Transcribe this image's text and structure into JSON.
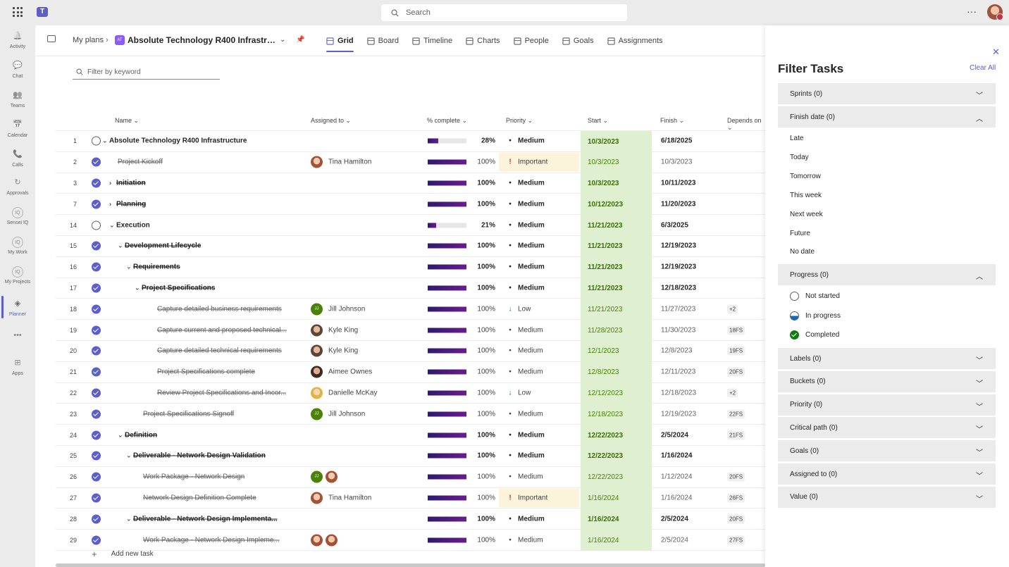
{
  "topbar": {
    "search_placeholder": "Search",
    "more": "···"
  },
  "rail": [
    {
      "label": "Activity",
      "icon": "bell-icon"
    },
    {
      "label": "Chat",
      "icon": "chat-icon"
    },
    {
      "label": "Teams",
      "icon": "teams-icon"
    },
    {
      "label": "Calendar",
      "icon": "calendar-icon"
    },
    {
      "label": "Calls",
      "icon": "phone-icon"
    },
    {
      "label": "Approvals",
      "icon": "approvals-icon"
    },
    {
      "label": "Sensei IQ",
      "icon": "iq-icon"
    },
    {
      "label": "My Work",
      "icon": "iq-icon"
    },
    {
      "label": "My Projects",
      "icon": "iq-icon"
    },
    {
      "label": "Planner",
      "icon": "planner-icon"
    },
    {
      "label": "",
      "icon": "more-icon"
    },
    {
      "label": "Apps",
      "icon": "apps-icon"
    }
  ],
  "header": {
    "breadcrumb": "My plans",
    "plan_icon_text": "AT",
    "plan_title": "Absolute Technology R400 Infrastructure",
    "tabs": [
      {
        "label": "Grid",
        "icon": "grid-icon"
      },
      {
        "label": "Board",
        "icon": "board-icon"
      },
      {
        "label": "Timeline",
        "icon": "timeline-icon"
      },
      {
        "label": "Charts",
        "icon": "chart-icon"
      },
      {
        "label": "People",
        "icon": "people-icon"
      },
      {
        "label": "Goals",
        "icon": "trophy-icon"
      },
      {
        "label": "Assignments",
        "icon": "assignments-icon"
      }
    ]
  },
  "filter": {
    "placeholder": "Filter by keyword"
  },
  "columns": {
    "name": "Name",
    "assigned": "Assigned to",
    "pct": "% complete",
    "priority": "Priority",
    "start": "Start",
    "finish": "Finish",
    "depends": "Depends on"
  },
  "rows": [
    {
      "num": "1",
      "done": false,
      "level": 0,
      "chev": "down",
      "bold": true,
      "strike": false,
      "name": "Absolute Technology R400 Infrastructure",
      "assigned": [],
      "pct": 28,
      "pct_label": "28%",
      "priority": "Medium",
      "prio_icon": "dot",
      "start": "10/3/2023",
      "finish": "6/18/2025",
      "dep": ""
    },
    {
      "num": "2",
      "done": true,
      "level": 1,
      "chev": "",
      "bold": false,
      "strike": true,
      "name": "Project Kickoff",
      "assigned": [
        {
          "type": "photo-f",
          "text": ""
        }
      ],
      "assigned_name": "Tina Hamilton",
      "pct": 100,
      "pct_label": "100%",
      "priority": "Important",
      "prio_icon": "bang",
      "start": "10/3/2023",
      "finish": "10/3/2023",
      "dep": ""
    },
    {
      "num": "3",
      "done": true,
      "level": 1,
      "chev": "right",
      "bold": true,
      "strike": true,
      "name": "Initiation",
      "assigned": [],
      "pct": 100,
      "pct_label": "100%",
      "priority": "Medium",
      "prio_icon": "dot",
      "start": "10/3/2023",
      "finish": "10/11/2023",
      "dep": ""
    },
    {
      "num": "7",
      "done": true,
      "level": 1,
      "chev": "right",
      "bold": true,
      "strike": true,
      "name": "Planning",
      "assigned": [],
      "pct": 100,
      "pct_label": "100%",
      "priority": "Medium",
      "prio_icon": "dot",
      "start": "10/12/2023",
      "finish": "11/20/2023",
      "dep": ""
    },
    {
      "num": "14",
      "done": false,
      "level": 1,
      "chev": "down",
      "bold": true,
      "strike": false,
      "name": "Execution",
      "assigned": [],
      "pct": 21,
      "pct_label": "21%",
      "priority": "Medium",
      "prio_icon": "dot",
      "start": "11/21/2023",
      "finish": "6/3/2025",
      "dep": ""
    },
    {
      "num": "15",
      "done": true,
      "level": 2,
      "chev": "down",
      "bold": true,
      "strike": true,
      "name": "Development Lifecycle",
      "assigned": [],
      "pct": 100,
      "pct_label": "100%",
      "priority": "Medium",
      "prio_icon": "dot",
      "start": "11/21/2023",
      "finish": "12/19/2023",
      "dep": ""
    },
    {
      "num": "16",
      "done": true,
      "level": 3,
      "chev": "down",
      "bold": true,
      "strike": true,
      "name": "Requirements",
      "assigned": [],
      "pct": 100,
      "pct_label": "100%",
      "priority": "Medium",
      "prio_icon": "dot",
      "start": "11/21/2023",
      "finish": "12/19/2023",
      "dep": ""
    },
    {
      "num": "17",
      "done": true,
      "level": 4,
      "chev": "down",
      "bold": true,
      "strike": true,
      "name": "Project Specifications",
      "assigned": [],
      "pct": 100,
      "pct_label": "100%",
      "priority": "Medium",
      "prio_icon": "dot",
      "start": "11/21/2023",
      "finish": "12/18/2023",
      "dep": ""
    },
    {
      "num": "18",
      "done": true,
      "level": 5,
      "chev": "",
      "bold": false,
      "strike": true,
      "name": "Capture detailed business requirements",
      "assigned": [
        {
          "type": "initials",
          "text": "JJ"
        }
      ],
      "assigned_name": "Jill Johnson",
      "pct": 100,
      "pct_label": "100%",
      "priority": "Low",
      "prio_icon": "down",
      "start": "11/21/2023",
      "finish": "11/27/2023",
      "dep": "+2"
    },
    {
      "num": "19",
      "done": true,
      "level": 5,
      "chev": "",
      "bold": false,
      "strike": true,
      "name": "Capture current and proposed technical...",
      "assigned": [
        {
          "type": "photo-m",
          "text": ""
        }
      ],
      "assigned_name": "Kyle King",
      "pct": 100,
      "pct_label": "100%",
      "priority": "Medium",
      "prio_icon": "dot",
      "start": "11/28/2023",
      "finish": "11/30/2023",
      "dep": "18FS"
    },
    {
      "num": "20",
      "done": true,
      "level": 5,
      "chev": "",
      "bold": false,
      "strike": true,
      "name": "Capture detailed technical requirements",
      "assigned": [
        {
          "type": "photo-m",
          "text": ""
        }
      ],
      "assigned_name": "Kyle King",
      "pct": 100,
      "pct_label": "100%",
      "priority": "Medium",
      "prio_icon": "dot",
      "start": "12/1/2023",
      "finish": "12/8/2023",
      "dep": "19FS"
    },
    {
      "num": "21",
      "done": true,
      "level": 5,
      "chev": "",
      "bold": false,
      "strike": true,
      "name": "Project Specifications complete",
      "assigned": [
        {
          "type": "photo-a",
          "text": ""
        }
      ],
      "assigned_name": "Aimee Ownes",
      "pct": 100,
      "pct_label": "100%",
      "priority": "Medium",
      "prio_icon": "dot",
      "start": "12/8/2023",
      "finish": "12/11/2023",
      "dep": "20FS"
    },
    {
      "num": "22",
      "done": true,
      "level": 5,
      "chev": "",
      "bold": false,
      "strike": true,
      "name": "Review Project Specifications and Incor...",
      "assigned": [
        {
          "type": "photo-d",
          "text": ""
        }
      ],
      "assigned_name": "Danielle McKay",
      "pct": 100,
      "pct_label": "100%",
      "priority": "Low",
      "prio_icon": "down",
      "start": "12/12/2023",
      "finish": "12/18/2023",
      "dep": "+2"
    },
    {
      "num": "23",
      "done": true,
      "level": 4,
      "chev": "",
      "bold": false,
      "strike": true,
      "name": "Project Specifications Signoff",
      "assigned": [
        {
          "type": "initials",
          "text": "JJ"
        }
      ],
      "assigned_name": "Jill Johnson",
      "pct": 100,
      "pct_label": "100%",
      "priority": "Medium",
      "prio_icon": "dot",
      "start": "12/18/2023",
      "finish": "12/19/2023",
      "dep": "22FS"
    },
    {
      "num": "24",
      "done": true,
      "level": 2,
      "chev": "down",
      "bold": true,
      "strike": true,
      "name": "Definition",
      "assigned": [],
      "pct": 100,
      "pct_label": "100%",
      "priority": "Medium",
      "prio_icon": "dot",
      "start": "12/22/2023",
      "finish": "2/5/2024",
      "dep": "21FS"
    },
    {
      "num": "25",
      "done": true,
      "level": 3,
      "chev": "down",
      "bold": true,
      "strike": true,
      "name": "Deliverable - Network Design Validation",
      "assigned": [],
      "pct": 100,
      "pct_label": "100%",
      "priority": "Medium",
      "prio_icon": "dot",
      "start": "12/22/2023",
      "finish": "1/16/2024",
      "dep": ""
    },
    {
      "num": "26",
      "done": true,
      "level": 4,
      "chev": "",
      "bold": false,
      "strike": true,
      "name": "Work Package - Network Design",
      "assigned": [
        {
          "type": "initials",
          "text": "JJ"
        },
        {
          "type": "photo-f",
          "text": ""
        }
      ],
      "assigned_name": "",
      "pct": 100,
      "pct_label": "100%",
      "priority": "Medium",
      "prio_icon": "dot",
      "start": "12/22/2023",
      "finish": "1/12/2024",
      "dep": "20FS"
    },
    {
      "num": "27",
      "done": true,
      "level": 4,
      "chev": "",
      "bold": false,
      "strike": true,
      "name": "Network Design Definition Complete",
      "assigned": [
        {
          "type": "photo-f",
          "text": ""
        }
      ],
      "assigned_name": "Tina Hamilton",
      "pct": 100,
      "pct_label": "100%",
      "priority": "Important",
      "prio_icon": "bang",
      "start": "1/16/2024",
      "finish": "1/16/2024",
      "dep": "26FS"
    },
    {
      "num": "28",
      "done": true,
      "level": 3,
      "chev": "down",
      "bold": true,
      "strike": true,
      "name": "Deliverable - Network Design Implementa...",
      "assigned": [],
      "pct": 100,
      "pct_label": "100%",
      "priority": "Medium",
      "prio_icon": "dot",
      "start": "1/16/2024",
      "finish": "2/5/2024",
      "dep": "20FS"
    },
    {
      "num": "29",
      "done": true,
      "level": 4,
      "chev": "",
      "bold": false,
      "strike": true,
      "name": "Work Package - Network Design Impleme...",
      "assigned": [
        {
          "type": "photo-f",
          "text": ""
        },
        {
          "type": "photo-f",
          "text": ""
        }
      ],
      "assigned_name": "",
      "pct": 100,
      "pct_label": "100%",
      "priority": "Medium",
      "prio_icon": "dot",
      "start": "1/16/2024",
      "finish": "2/5/2024",
      "dep": "27FS"
    }
  ],
  "add_task": "Add new task",
  "panel": {
    "title": "Filter Tasks",
    "clear_all": "Clear All",
    "sprints": "Sprints (0)",
    "finish_date": "Finish date (0)",
    "finish_options": [
      "Late",
      "Today",
      "Tomorrow",
      "This week",
      "Next week",
      "Future",
      "No date"
    ],
    "progress": "Progress (0)",
    "progress_options": [
      {
        "label": "Not started",
        "icon": "ns"
      },
      {
        "label": "In progress",
        "icon": "ip"
      },
      {
        "label": "Completed",
        "icon": "cp"
      }
    ],
    "collapsed": [
      "Labels (0)",
      "Buckets (0)",
      "Priority (0)",
      "Critical path (0)",
      "Goals (0)",
      "Assigned to (0)",
      "Value (0)"
    ]
  }
}
